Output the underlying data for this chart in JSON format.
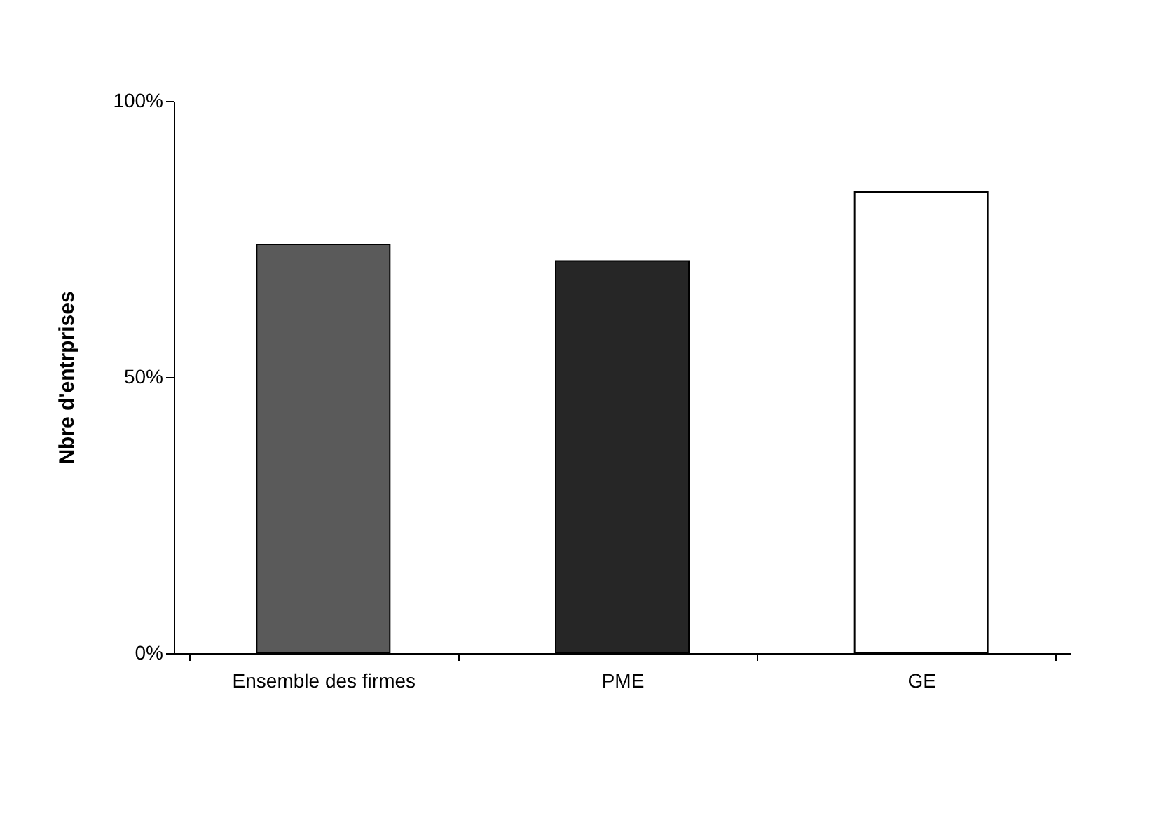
{
  "chart_data": {
    "type": "bar",
    "ylabel": "Nbre d'entrprises",
    "categories": [
      "Ensemble des firmes",
      "PME",
      "GE"
    ],
    "values": [
      74,
      71,
      83.5
    ],
    "colors": [
      "#5a5a5a",
      "#262626",
      "#ffffff"
    ],
    "ylim": [
      0,
      100
    ],
    "yticks": [
      {
        "value": 0,
        "label": "0%"
      },
      {
        "value": 50,
        "label": "50%"
      },
      {
        "value": 100,
        "label": "100%"
      }
    ],
    "grid": false
  }
}
